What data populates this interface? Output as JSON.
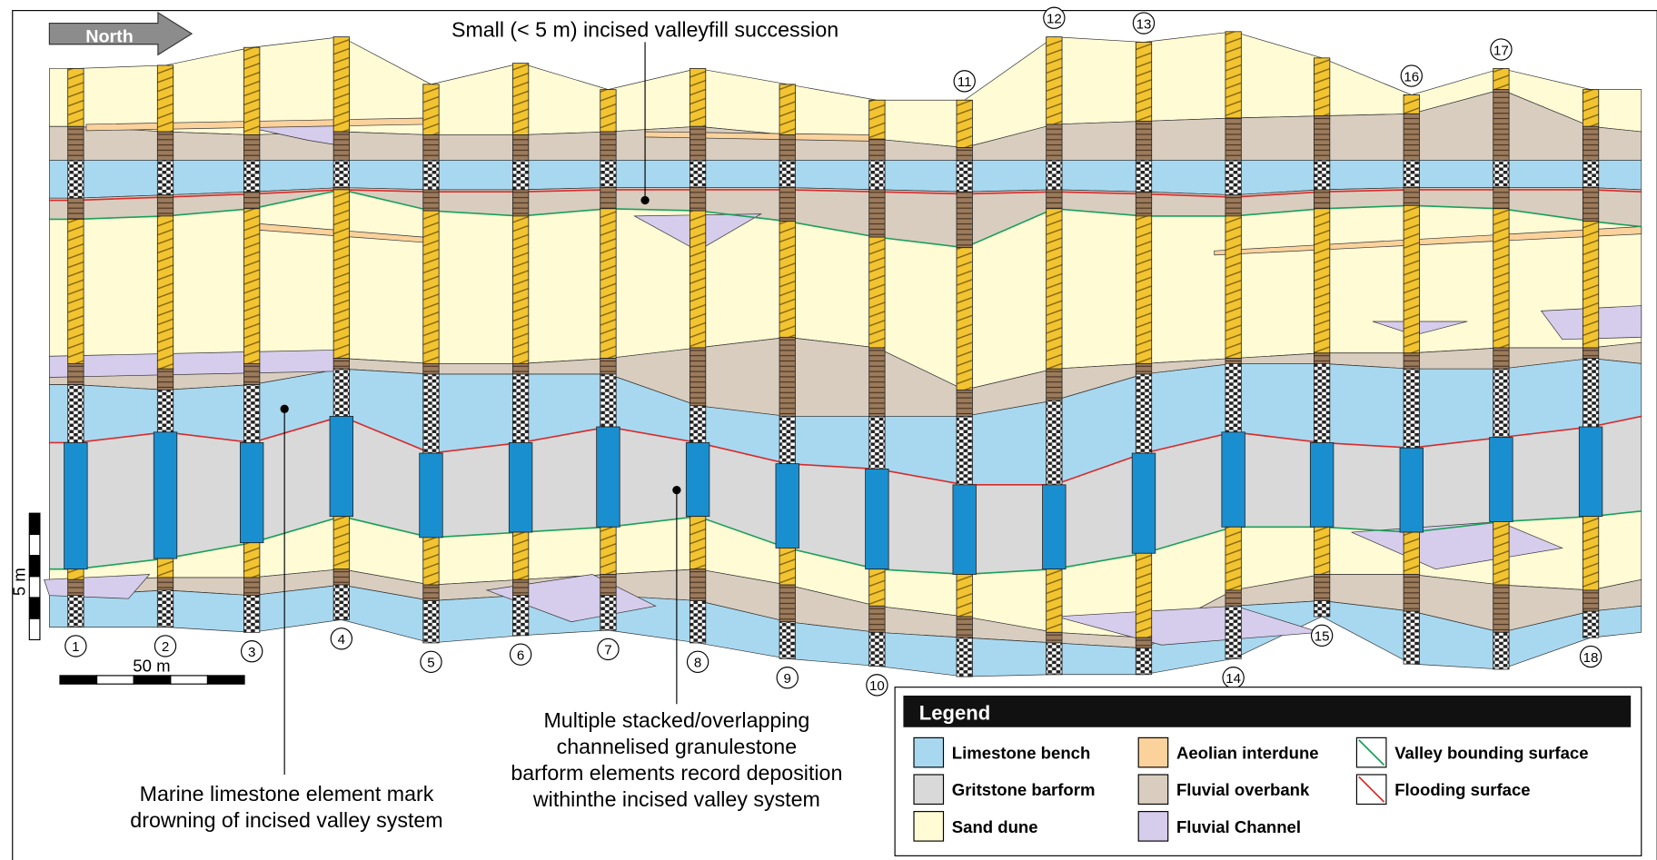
{
  "north": "North",
  "annotations": [
    {
      "lines": [
        "Small (< 5 m) incised valleyfill succession"
      ]
    },
    {
      "lines": [
        "Multiple stacked/overlapping",
        "channelised granulestone",
        "barform elements record deposition",
        "withinthe incised valley system"
      ]
    },
    {
      "lines": [
        "Marine limestone element mark",
        "drowning of incised valley system"
      ]
    }
  ],
  "columns": [
    "1",
    "2",
    "3",
    "4",
    "5",
    "6",
    "7",
    "8",
    "9",
    "10",
    "11",
    "12",
    "13",
    "14",
    "15",
    "16",
    "17",
    "18"
  ],
  "scale": {
    "vertical": "5 m",
    "horizontal": "50 m"
  },
  "legend": {
    "title": "Legend",
    "items": [
      {
        "label": "Limestone bench",
        "color": "#a8d8ef"
      },
      {
        "label": "Aeolian interdune",
        "color": "#fbd29b"
      },
      {
        "label": "Valley bounding surface",
        "color": "#1aa05a"
      },
      {
        "label": "Gritstone barform",
        "color": "#d9d9d9"
      },
      {
        "label": "Fluvial overbank",
        "color": "#d9cdbf"
      },
      {
        "label": "Flooding surface",
        "color": "#d92b2b"
      },
      {
        "label": "Sand dune",
        "color": "#fffbd5"
      },
      {
        "label": "Fluvial Channel",
        "color": "#d6ccec"
      }
    ]
  }
}
